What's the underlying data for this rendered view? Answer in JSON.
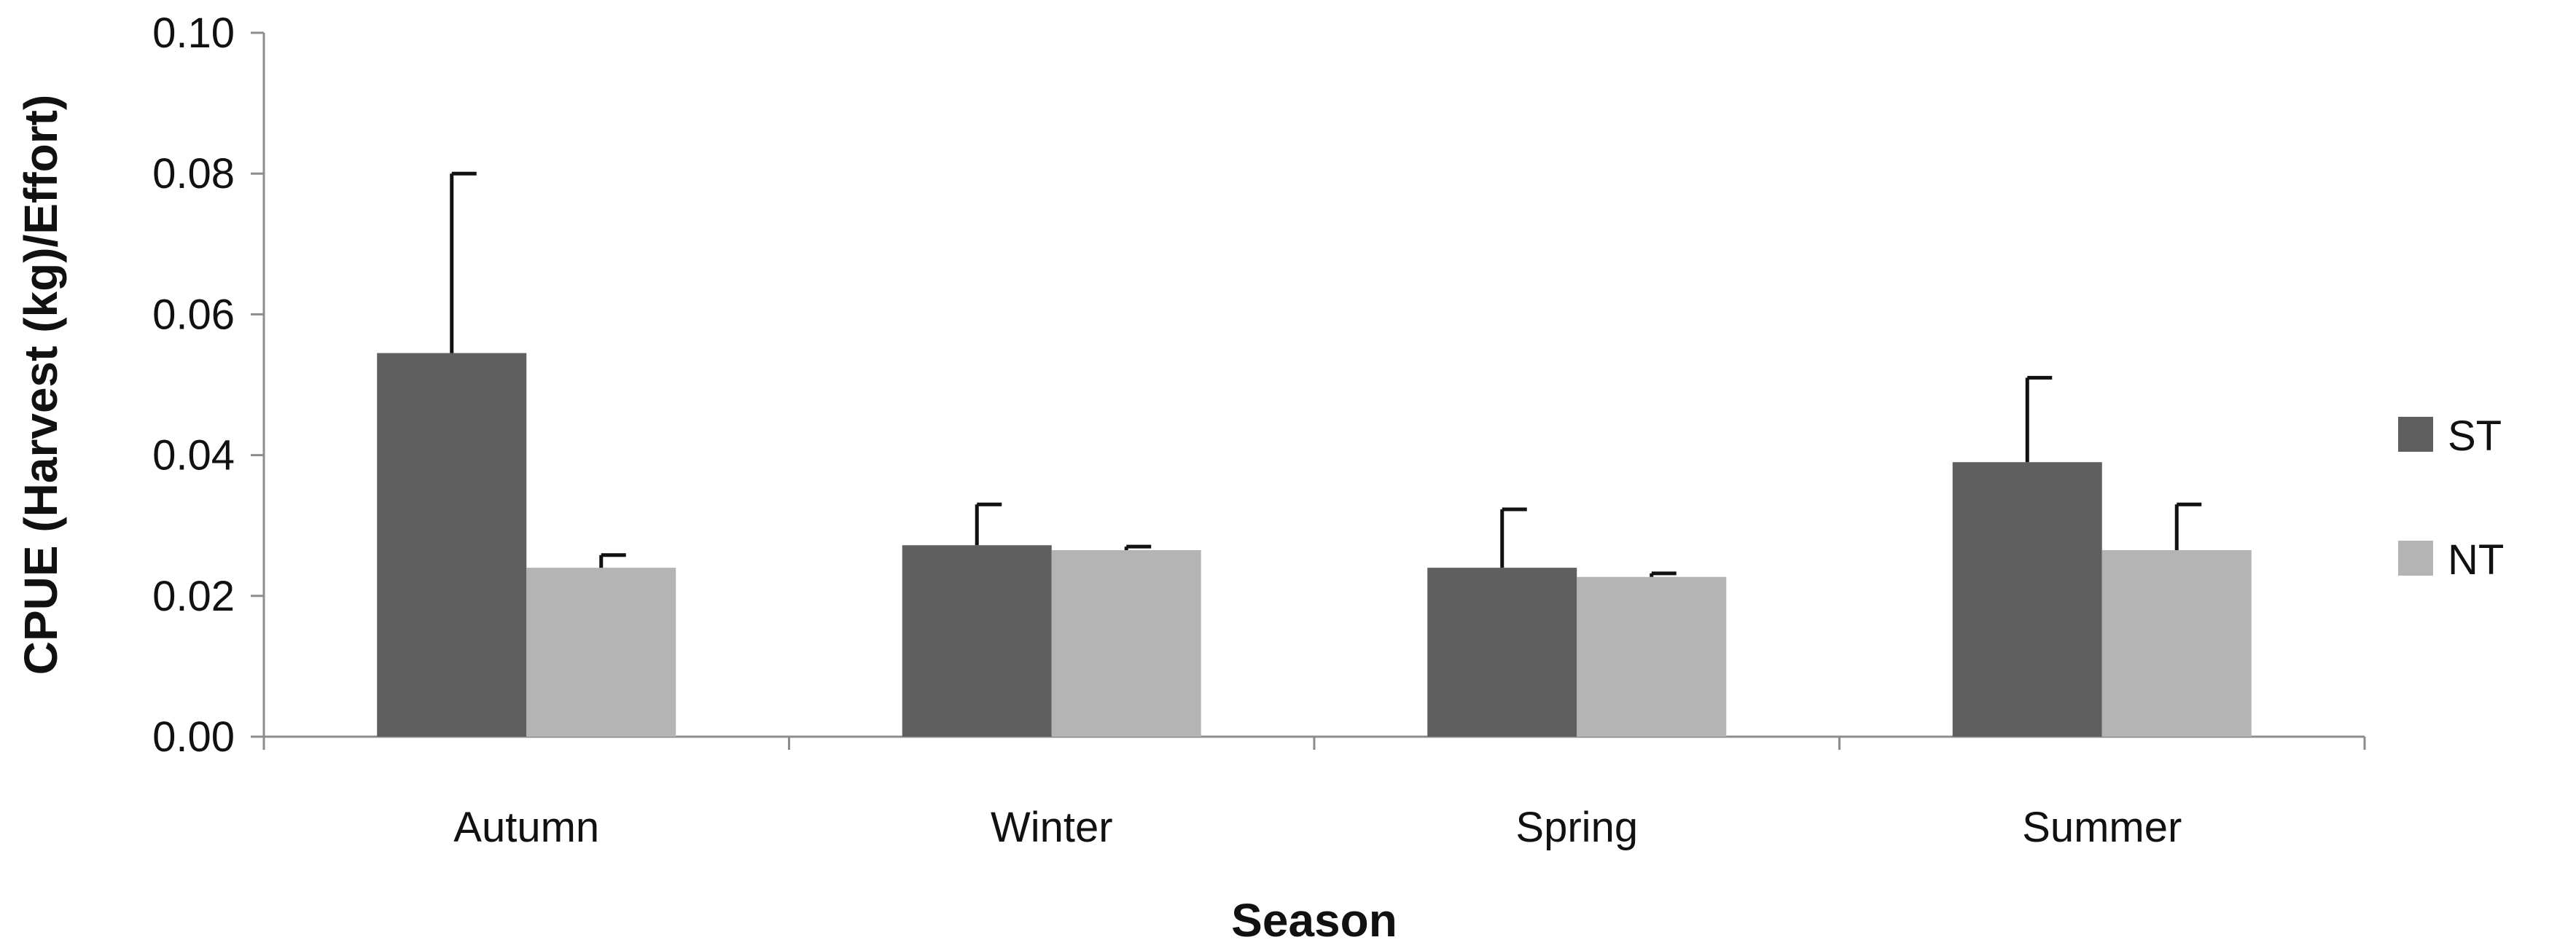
{
  "chart_data": {
    "type": "bar",
    "xlabel": "Season",
    "ylabel": "CPUE  (Harvest (kg)/Effort)",
    "ylim": [
      0,
      0.1
    ],
    "yticks": [
      "0.00",
      "0.02",
      "0.04",
      "0.06",
      "0.08",
      "0.10"
    ],
    "categories": [
      "Autumn",
      "Winter",
      "Spring",
      "Summer"
    ],
    "series": [
      {
        "name": "ST",
        "color": "#5f5f5f",
        "values": [
          0.0545,
          0.0272,
          0.024,
          0.039
        ],
        "error_upper": [
          0.08,
          0.033,
          0.0323,
          0.051
        ]
      },
      {
        "name": "NT",
        "color": "#b4b4b4",
        "values": [
          0.024,
          0.0265,
          0.0227,
          0.0265
        ],
        "error_upper": [
          0.0258,
          0.027,
          0.0232,
          0.033
        ]
      }
    ],
    "legend_position": "right",
    "grid": false
  }
}
